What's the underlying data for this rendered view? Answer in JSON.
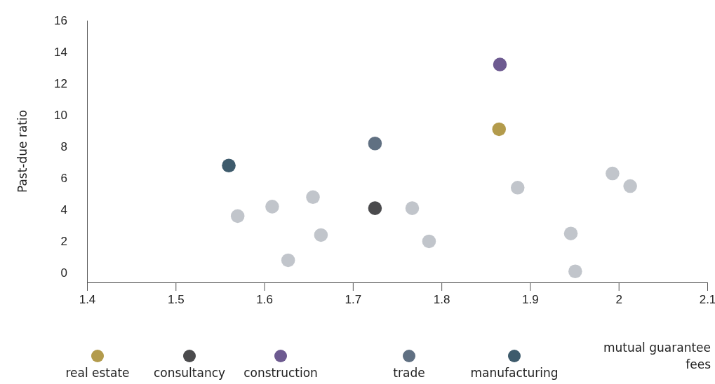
{
  "chart_data": {
    "type": "scatter",
    "ylabel": "Past-due ratio",
    "xlabel": "mutual guarantee fees",
    "xlim": [
      1.4,
      2.1
    ],
    "xticks": [
      1.4,
      1.5,
      1.6,
      1.7,
      1.8,
      1.9,
      2,
      2.1
    ],
    "ylim": [
      -0.6,
      16
    ],
    "yticks": [
      0,
      2,
      4,
      6,
      8,
      10,
      12,
      14,
      16
    ],
    "grid": false,
    "legend": "bottom",
    "marker": "circle",
    "series": [
      {
        "color": "#c1c5cb",
        "x": [
          1.57,
          1.609,
          1.627,
          1.655,
          1.664,
          1.767,
          1.786,
          1.886,
          1.946,
          1.951,
          1.993,
          2.013
        ],
        "values": [
          3.6,
          4.2,
          0.8,
          4.8,
          2.4,
          4.1,
          2.0,
          5.4,
          2.5,
          0.1,
          6.3,
          5.5
        ]
      },
      {
        "name": "real estate",
        "color": "#b39b4c",
        "x": [
          1.865
        ],
        "values": [
          9.1
        ]
      },
      {
        "name": "consultancy",
        "color": "#4b4b4d",
        "x": [
          1.725
        ],
        "values": [
          4.1
        ]
      },
      {
        "name": "construction",
        "color": "#6d5a90",
        "x": [
          1.866
        ],
        "values": [
          13.2
        ]
      },
      {
        "name": "trade",
        "color": "#607082",
        "x": [
          1.725
        ],
        "values": [
          8.2
        ]
      },
      {
        "name": "manufacturing",
        "color": "#3e5b6c",
        "x": [
          1.56
        ],
        "values": [
          6.8
        ]
      }
    ]
  }
}
